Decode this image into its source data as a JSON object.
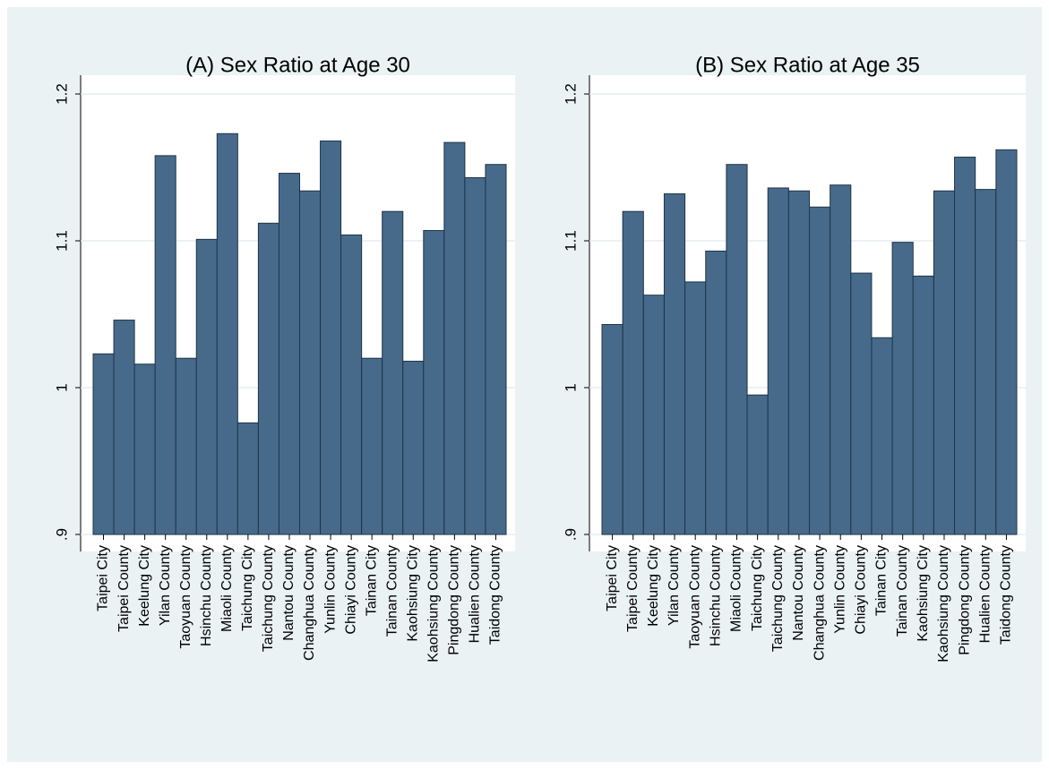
{
  "chart_data": [
    {
      "type": "bar",
      "title": "(A) Sex Ratio at Age 30",
      "categories": [
        "Taipei City",
        "Taipei County",
        "Keelung City",
        "Yilan County",
        "Taoyuan County",
        "Hsinchu County",
        "Miaoli County",
        "Taichung City",
        "Taichung County",
        "Nantou County",
        "Changhua County",
        "Yunlin County",
        "Chiayi County",
        "Tainan City",
        "Tainan County",
        "Kaohsiung City",
        "Kaohsiung County",
        "Pingdong County",
        "Hualien County",
        "Taidong County"
      ],
      "values": [
        1.023,
        1.046,
        1.016,
        1.158,
        1.02,
        1.101,
        1.173,
        0.976,
        1.112,
        1.146,
        1.134,
        1.168,
        1.104,
        1.02,
        1.12,
        1.018,
        1.107,
        1.167,
        1.143,
        1.152
      ],
      "color": "#476a8b",
      "ylim": [
        0.9,
        1.2
      ],
      "yticks": [
        {
          "value": 0.9,
          "label": ".9"
        },
        1,
        1.1,
        1.2
      ],
      "grid": true
    },
    {
      "type": "bar",
      "title": "(B) Sex Ratio at Age 35",
      "categories": [
        "Taipei City",
        "Taipei County",
        "Keelung City",
        "Yilan County",
        "Taoyuan County",
        "Hsinchu County",
        "Miaoli County",
        "Taichung City",
        "Taichung County",
        "Nantou County",
        "Changhua County",
        "Yunlin County",
        "Chiayi County",
        "Tainan City",
        "Tainan County",
        "Kaohsiung City",
        "Kaohsiung County",
        "Pingdong County",
        "Hualien County",
        "Taidong County"
      ],
      "values": [
        1.043,
        1.12,
        1.063,
        1.132,
        1.072,
        1.093,
        1.152,
        0.995,
        1.136,
        1.134,
        1.123,
        1.138,
        1.078,
        1.034,
        1.099,
        1.076,
        1.134,
        1.157,
        1.135,
        1.162
      ],
      "color": "#476a8b",
      "ylim": [
        0.9,
        1.2
      ],
      "yticks": [
        {
          "value": 0.9,
          "label": ".9"
        },
        1,
        1.1,
        1.2
      ],
      "grid": true
    }
  ]
}
